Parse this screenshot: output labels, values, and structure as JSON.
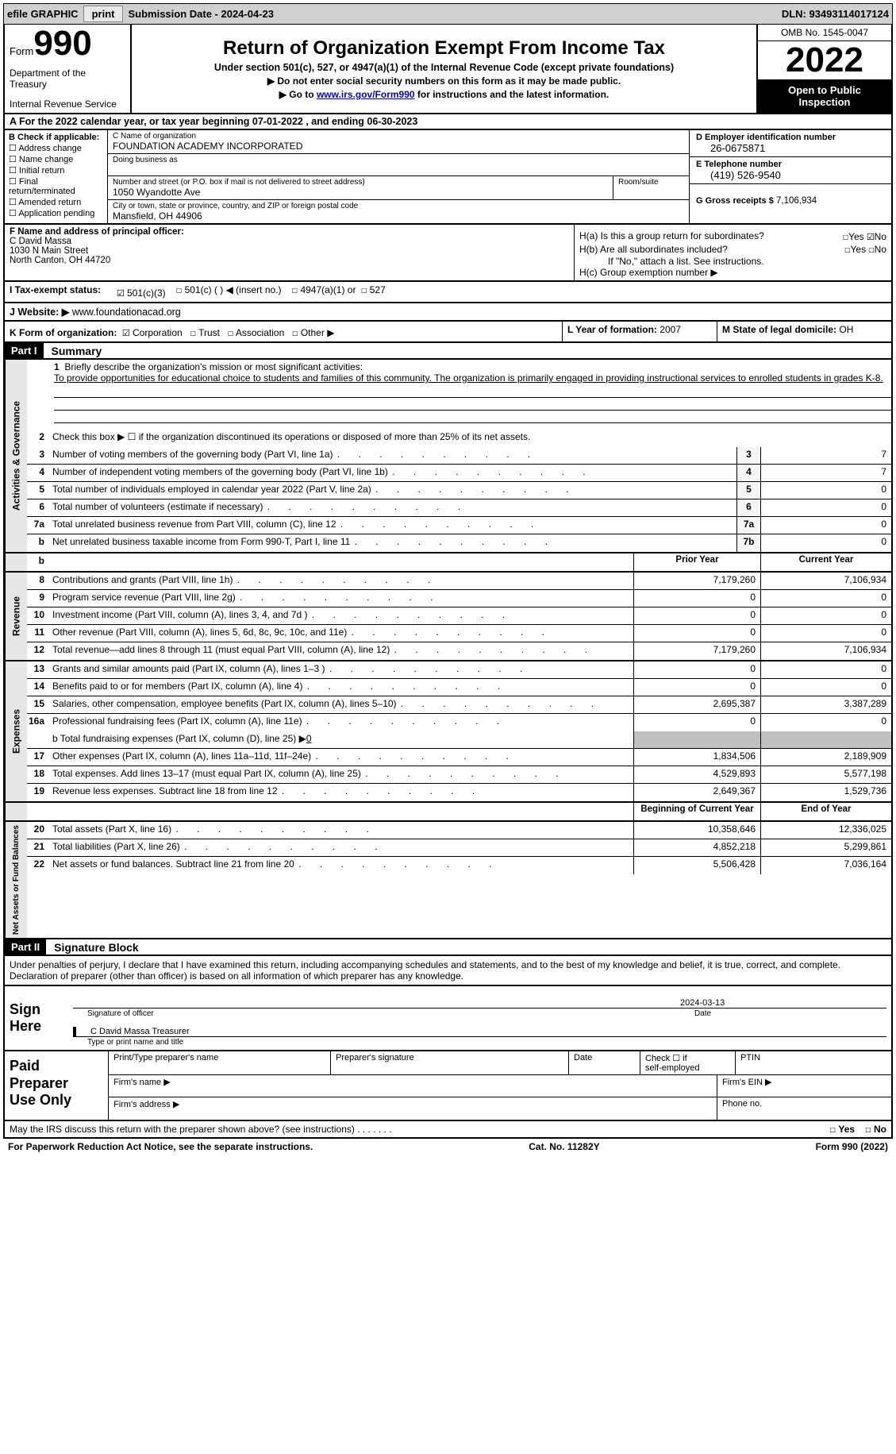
{
  "topbar": {
    "efile_label": "efile GRAPHIC",
    "print_btn": "print",
    "sub_date_label": "Submission Date - 2024-04-23",
    "dln": "DLN: 93493114017124"
  },
  "header": {
    "form_prefix": "Form",
    "form_num": "990",
    "dept": "Department of the Treasury",
    "irs": "Internal Revenue Service",
    "title": "Return of Organization Exempt From Income Tax",
    "subtitle": "Under section 501(c), 527, or 4947(a)(1) of the Internal Revenue Code (except private foundations)",
    "instr1": "▶ Do not enter social security numbers on this form as it may be made public.",
    "instr2_pre": "▶ Go to ",
    "instr2_link": "www.irs.gov/Form990",
    "instr2_post": " for instructions and the latest information.",
    "omb": "OMB No. 1545-0047",
    "year": "2022",
    "open1": "Open to Public",
    "open2": "Inspection"
  },
  "row_a": "A For the 2022 calendar year, or tax year beginning 07-01-2022    , and ending 06-30-2023",
  "col_b": {
    "hdr": "B Check if applicable:",
    "items": [
      "Address change",
      "Name change",
      "Initial return",
      "Final return/terminated",
      "Amended return",
      "Application pending"
    ]
  },
  "col_c": {
    "name_lab": "C Name of organization",
    "name": "FOUNDATION ACADEMY INCORPORATED",
    "dba_lab": "Doing business as",
    "street_lab": "Number and street (or P.O. box if mail is not delivered to street address)",
    "room_lab": "Room/suite",
    "street": "1050 Wyandotte Ave",
    "city_lab": "City or town, state or province, country, and ZIP or foreign postal code",
    "city": "Mansfield, OH  44906"
  },
  "col_d": {
    "ein_lab": "D Employer identification number",
    "ein": "26-0675871",
    "tel_lab": "E Telephone number",
    "tel": "(419) 526-9540",
    "gross_lab": "G Gross receipts $",
    "gross": "7,106,934"
  },
  "row_f": {
    "lab": "F  Name and address of principal officer:",
    "name": "C David Massa",
    "street": "1030 N Main Street",
    "city": "North Canton, OH  44720",
    "ha": "H(a)  Is this a group return for subordinates?",
    "hb": "H(b)  Are all subordinates included?",
    "hb_note": "If \"No,\" attach a list. See instructions.",
    "hc": "H(c)  Group exemption number ▶",
    "yes": "Yes",
    "no": "No"
  },
  "row_i": {
    "lab": "I   Tax-exempt status:",
    "o1": "501(c)(3)",
    "o2": "501(c) (   ) ◀ (insert no.)",
    "o3": "4947(a)(1) or",
    "o4": "527"
  },
  "row_j": {
    "lab": "J   Website: ▶",
    "val": "www.foundationacad.org"
  },
  "row_k": {
    "lab": "K Form of organization:",
    "corp": "Corporation",
    "trust": "Trust",
    "assoc": "Association",
    "other": "Other ▶",
    "l_lab": "L Year of formation:",
    "l_val": "2007",
    "m_lab": "M State of legal domicile:",
    "m_val": "OH"
  },
  "part1": {
    "hdr": "Part I",
    "title": "Summary"
  },
  "sec1": {
    "side": "Activities & Governance",
    "l1_lab": "Briefly describe the organization's mission or most significant activities:",
    "l1_txt": "To provide opportunities for educational choice to students and families of this community. The organization is primarily engaged in providing instructional services to enrolled students in grades K-8.",
    "l2_lab": "Check this box ▶ ☐  if the organization discontinued its operations or disposed of more than 25% of its net assets.",
    "rows": [
      {
        "n": "3",
        "d": "Number of voting members of the governing body (Part VI, line 1a)",
        "b": "3",
        "v": "7"
      },
      {
        "n": "4",
        "d": "Number of independent voting members of the governing body (Part VI, line 1b)",
        "b": "4",
        "v": "7"
      },
      {
        "n": "5",
        "d": "Total number of individuals employed in calendar year 2022 (Part V, line 2a)",
        "b": "5",
        "v": "0"
      },
      {
        "n": "6",
        "d": "Total number of volunteers (estimate if necessary)",
        "b": "6",
        "v": "0"
      },
      {
        "n": "7a",
        "d": "Total unrelated business revenue from Part VIII, column (C), line 12",
        "b": "7a",
        "v": "0"
      },
      {
        "n": "b",
        "d": "Net unrelated business taxable income from Form 990-T, Part I, line 11",
        "b": "7b",
        "v": "0"
      }
    ]
  },
  "cols": {
    "py": "Prior Year",
    "cy": "Current Year"
  },
  "sec2": {
    "side": "Revenue",
    "rows": [
      {
        "n": "8",
        "d": "Contributions and grants (Part VIII, line 1h)",
        "py": "7,179,260",
        "cy": "7,106,934"
      },
      {
        "n": "9",
        "d": "Program service revenue (Part VIII, line 2g)",
        "py": "0",
        "cy": "0"
      },
      {
        "n": "10",
        "d": "Investment income (Part VIII, column (A), lines 3, 4, and 7d )",
        "py": "0",
        "cy": "0"
      },
      {
        "n": "11",
        "d": "Other revenue (Part VIII, column (A), lines 5, 6d, 8c, 9c, 10c, and 11e)",
        "py": "0",
        "cy": "0"
      },
      {
        "n": "12",
        "d": "Total revenue—add lines 8 through 11 (must equal Part VIII, column (A), line 12)",
        "py": "7,179,260",
        "cy": "7,106,934"
      }
    ]
  },
  "sec3": {
    "side": "Expenses",
    "rows": [
      {
        "n": "13",
        "d": "Grants and similar amounts paid (Part IX, column (A), lines 1–3 )",
        "py": "0",
        "cy": "0"
      },
      {
        "n": "14",
        "d": "Benefits paid to or for members (Part IX, column (A), line 4)",
        "py": "0",
        "cy": "0"
      },
      {
        "n": "15",
        "d": "Salaries, other compensation, employee benefits (Part IX, column (A), lines 5–10)",
        "py": "2,695,387",
        "cy": "3,387,289"
      },
      {
        "n": "16a",
        "d": "Professional fundraising fees (Part IX, column (A), line 11e)",
        "py": "0",
        "cy": "0"
      }
    ],
    "l16b": "b   Total fundraising expenses (Part IX, column (D), line 25) ▶",
    "l16b_val": "0",
    "rows2": [
      {
        "n": "17",
        "d": "Other expenses (Part IX, column (A), lines 11a–11d, 11f–24e)",
        "py": "1,834,506",
        "cy": "2,189,909"
      },
      {
        "n": "18",
        "d": "Total expenses. Add lines 13–17 (must equal Part IX, column (A), line 25)",
        "py": "4,529,893",
        "cy": "5,577,198"
      },
      {
        "n": "19",
        "d": "Revenue less expenses. Subtract line 18 from line 12",
        "py": "2,649,367",
        "cy": "1,529,736"
      }
    ]
  },
  "cols2": {
    "bcy": "Beginning of Current Year",
    "eoy": "End of Year"
  },
  "sec4": {
    "side": "Net Assets or Fund Balances",
    "rows": [
      {
        "n": "20",
        "d": "Total assets (Part X, line 16)",
        "py": "10,358,646",
        "cy": "12,336,025"
      },
      {
        "n": "21",
        "d": "Total liabilities (Part X, line 26)",
        "py": "4,852,218",
        "cy": "5,299,861"
      },
      {
        "n": "22",
        "d": "Net assets or fund balances. Subtract line 21 from line 20",
        "py": "5,506,428",
        "cy": "7,036,164"
      }
    ]
  },
  "part2": {
    "hdr": "Part II",
    "title": "Signature Block"
  },
  "sig": {
    "decl": "Under penalties of perjury, I declare that I have examined this return, including accompanying schedules and statements, and to the best of my knowledge and belief, it is true, correct, and complete. Declaration of preparer (other than officer) is based on all information of which preparer has any knowledge.",
    "sign": "Sign",
    "here": "Here",
    "date": "2024-03-13",
    "sig_lab": "Signature of officer",
    "date_lab": "Date",
    "name": "C David Massa  Treasurer",
    "name_lab": "Type or print name and title"
  },
  "prep": {
    "l1": "Paid",
    "l2": "Preparer",
    "l3": "Use Only",
    "c1": "Print/Type preparer's name",
    "c2": "Preparer's signature",
    "c3": "Date",
    "c4_pre": "Check ☐ if",
    "c4": "self-employed",
    "c5": "PTIN",
    "r2a": "Firm's name   ▶",
    "r2b": "Firm's EIN ▶",
    "r3a": "Firm's address ▶",
    "r3b": "Phone no."
  },
  "last": {
    "q": "May the IRS discuss this return with the preparer shown above? (see instructions)",
    "yes": "Yes",
    "no": "No"
  },
  "footer": {
    "l": "For Paperwork Reduction Act Notice, see the separate instructions.",
    "m": "Cat. No. 11282Y",
    "r": "Form 990 (2022)"
  }
}
